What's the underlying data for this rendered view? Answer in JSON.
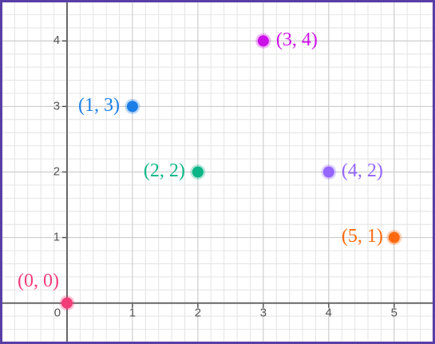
{
  "chart_data": {
    "type": "scatter",
    "xlim": [
      -1,
      5.6
    ],
    "ylim": [
      -0.6,
      4.6
    ],
    "xticks": [
      0,
      1,
      2,
      3,
      4,
      5
    ],
    "yticks": [
      1,
      2,
      3,
      4
    ],
    "grid": true,
    "series": [
      {
        "name": "(0, 0)",
        "color": "#f23c78",
        "x": [
          0
        ],
        "values": [
          0
        ]
      },
      {
        "name": "(1, 3)",
        "color": "#1a7ee6",
        "x": [
          1
        ],
        "values": [
          3
        ]
      },
      {
        "name": "(2, 2)",
        "color": "#0bb586",
        "x": [
          2
        ],
        "values": [
          2
        ]
      },
      {
        "name": "(3, 4)",
        "color": "#cc11e8",
        "x": [
          3
        ],
        "values": [
          4
        ]
      },
      {
        "name": "(4, 2)",
        "color": "#9466ff",
        "x": [
          4
        ],
        "values": [
          2
        ]
      },
      {
        "name": "(5, 1)",
        "color": "#ff6a10",
        "x": [
          5
        ],
        "values": [
          1
        ]
      }
    ]
  }
}
